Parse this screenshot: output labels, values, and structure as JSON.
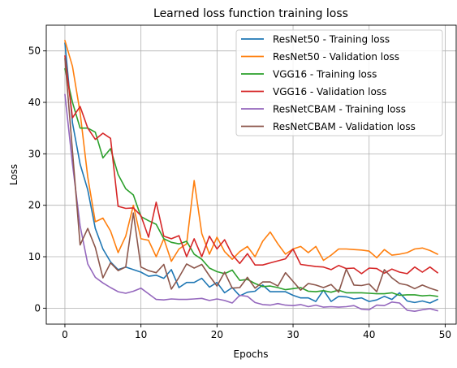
{
  "chart_data": {
    "type": "line",
    "title": "Learned loss function training loss",
    "xlabel": "Epochs",
    "ylabel": "Loss",
    "xlim": [
      -2.45,
      51.45
    ],
    "ylim": [
      -3.1,
      55.0
    ],
    "xticks": [
      0,
      10,
      20,
      30,
      40,
      50
    ],
    "yticks": [
      0,
      10,
      20,
      30,
      40,
      50
    ],
    "grid": true,
    "legend_position": "top-right",
    "x": [
      0,
      1,
      2,
      3,
      4,
      5,
      6,
      7,
      8,
      9,
      10,
      11,
      12,
      13,
      14,
      15,
      16,
      17,
      18,
      19,
      20,
      21,
      22,
      23,
      24,
      25,
      26,
      27,
      28,
      29,
      30,
      31,
      32,
      33,
      34,
      35,
      36,
      37,
      38,
      39,
      40,
      41,
      42,
      43,
      44,
      45,
      46,
      47,
      48,
      49
    ],
    "series": [
      {
        "name": "ResNet50 - Training loss",
        "color": "#1f77b4",
        "values": [
          51.5,
          36.0,
          28.0,
          23.0,
          15.5,
          11.5,
          9.0,
          7.5,
          8.0,
          7.5,
          7.0,
          6.2,
          6.4,
          5.8,
          7.5,
          4.0,
          5.0,
          5.0,
          5.8,
          4.1,
          5.0,
          3.0,
          4.0,
          2.4,
          3.1,
          3.3,
          4.5,
          3.2,
          3.2,
          3.2,
          2.5,
          2.0,
          2.0,
          1.3,
          3.5,
          1.3,
          2.3,
          2.2,
          1.8,
          2.0,
          1.3,
          1.6,
          2.3,
          1.7,
          3.0,
          1.4,
          1.1,
          1.4,
          1.0,
          1.7
        ]
      },
      {
        "name": "ResNet50 - Validation loss",
        "color": "#ff7f0e",
        "values": [
          52.0,
          47.0,
          38.0,
          25.5,
          16.8,
          17.5,
          15.0,
          10.8,
          14.0,
          20.0,
          13.5,
          13.2,
          10.0,
          13.5,
          9.1,
          11.5,
          12.5,
          24.8,
          14.5,
          10.5,
          13.8,
          11.0,
          9.5,
          11.0,
          12.0,
          10.0,
          13.0,
          14.8,
          12.5,
          10.5,
          11.5,
          12.0,
          10.8,
          12.0,
          9.3,
          10.3,
          11.5,
          11.5,
          11.4,
          11.3,
          11.1,
          9.8,
          11.4,
          10.3,
          10.5,
          10.8,
          11.5,
          11.7,
          11.2,
          10.5
        ]
      },
      {
        "name": "VGG16 - Training loss",
        "color": "#2ca02c",
        "values": [
          46.5,
          40.0,
          35.0,
          35.0,
          34.2,
          29.2,
          31.0,
          26.0,
          23.2,
          22.0,
          17.8,
          17.0,
          16.3,
          13.5,
          12.8,
          12.5,
          13.0,
          10.5,
          9.5,
          7.8,
          7.1,
          6.7,
          7.4,
          5.4,
          5.6,
          4.8,
          4.2,
          4.3,
          4.0,
          3.6,
          3.8,
          4.0,
          3.3,
          3.2,
          3.4,
          3.1,
          3.5,
          3.0,
          3.0,
          3.0,
          2.9,
          2.8,
          2.8,
          3.0,
          2.5,
          2.6,
          2.6,
          2.4,
          2.5,
          2.3
        ]
      },
      {
        "name": "VGG16 - Validation loss",
        "color": "#d62728",
        "values": [
          49.0,
          37.0,
          39.2,
          35.0,
          32.8,
          34.0,
          33.0,
          19.8,
          19.4,
          19.5,
          18.0,
          13.8,
          20.6,
          14.0,
          13.5,
          14.1,
          10.0,
          13.5,
          10.0,
          14.0,
          11.5,
          13.3,
          10.4,
          8.7,
          10.6,
          8.4,
          8.4,
          8.8,
          9.2,
          9.6,
          11.5,
          8.5,
          8.3,
          8.1,
          8.0,
          7.5,
          8.3,
          7.7,
          7.8,
          6.7,
          7.8,
          7.7,
          6.8,
          7.6,
          7.0,
          6.7,
          8.0,
          7.0,
          8.0,
          6.9
        ]
      },
      {
        "name": "ResNetCBAM - Training loss",
        "color": "#9467bd",
        "values": [
          41.5,
          28.0,
          16.0,
          8.6,
          6.0,
          4.9,
          4.0,
          3.2,
          2.9,
          3.3,
          3.9,
          2.8,
          1.7,
          1.6,
          1.8,
          1.7,
          1.7,
          1.8,
          1.9,
          1.5,
          1.8,
          1.5,
          1.0,
          2.5,
          2.3,
          1.1,
          0.7,
          0.6,
          0.9,
          0.6,
          0.5,
          0.7,
          0.3,
          0.6,
          0.2,
          0.3,
          0.2,
          0.3,
          0.5,
          -0.2,
          -0.3,
          0.6,
          0.5,
          1.2,
          1.0,
          -0.4,
          -0.6,
          -0.3,
          -0.1,
          -0.5
        ]
      },
      {
        "name": "ResNetCBAM - Validation loss",
        "color": "#8c564b",
        "values": [
          48.5,
          30.5,
          12.3,
          15.5,
          11.8,
          5.9,
          8.8,
          7.3,
          8.0,
          18.5,
          8.0,
          7.3,
          6.9,
          8.5,
          3.7,
          6.0,
          8.6,
          7.8,
          8.5,
          6.3,
          4.3,
          7.0,
          3.9,
          4.0,
          6.0,
          3.9,
          5.1,
          5.1,
          4.3,
          6.9,
          5.2,
          3.5,
          4.8,
          4.5,
          4.0,
          4.6,
          3.1,
          7.6,
          4.5,
          4.4,
          4.7,
          3.2,
          7.5,
          5.9,
          4.8,
          4.5,
          3.8,
          4.5,
          3.9,
          3.4
        ]
      }
    ]
  }
}
